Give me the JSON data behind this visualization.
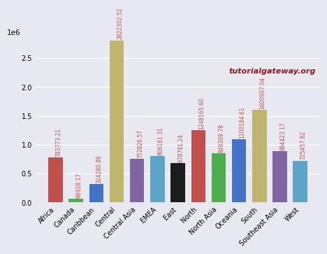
{
  "categories": [
    "Africa",
    "Canada",
    "Caribbean",
    "Central",
    "Central Asia",
    "EMEA",
    "East",
    "North",
    "North Asia",
    "Oceania",
    "South",
    "Southeast Asia",
    "West"
  ],
  "values": [
    783773.21,
    66928.17,
    324280.86,
    2822302.52,
    752826.57,
    806161.31,
    678781.24,
    1248165.6,
    848309.78,
    1100184.61,
    1600907.04,
    884423.17,
    725457.82
  ],
  "bar_colors": [
    "#c0504d",
    "#4eae4e",
    "#4472c4",
    "#bfb56e",
    "#8064a2",
    "#5da5c8",
    "#1c1c1c",
    "#c0504d",
    "#4eae4e",
    "#4472c4",
    "#bfb56e",
    "#8064a2",
    "#5da5c8"
  ],
  "annotation_color": "#c0504d",
  "annotation_fontsize": 5.5,
  "bg_color": "#e8e8f0",
  "watermark_text": "tutorialgateway.org",
  "watermark_color": "#8b1a1a",
  "watermark_fontsize": 8,
  "ylim": [
    0,
    2800000
  ],
  "yticks": [
    0.0,
    0.5,
    1.0,
    1.5,
    2.0,
    2.5
  ],
  "tick_fontsize": 7,
  "xlabel_rotation": 45
}
